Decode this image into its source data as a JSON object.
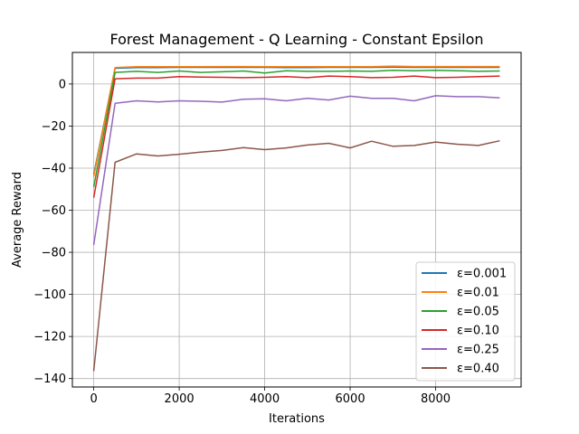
{
  "chart_data": {
    "type": "line",
    "title": "Forest Management - Q Learning - Constant Epsilon",
    "xlabel": "Iterations",
    "ylabel": "Average Reward",
    "xlim": [
      -500,
      10000
    ],
    "ylim": [
      -144,
      15
    ],
    "xticks": [
      0,
      2000,
      4000,
      6000,
      8000
    ],
    "xtick_labels": [
      "0",
      "2000",
      "4000",
      "6000",
      "8000"
    ],
    "yticks": [
      0,
      -20,
      -40,
      -60,
      -80,
      -100,
      -120,
      -140
    ],
    "ytick_labels": [
      "0",
      "−20",
      "−40",
      "−60",
      "−80",
      "−100",
      "−120",
      "−140"
    ],
    "grid": true,
    "legend_position": "lower-right",
    "x": [
      0,
      500,
      1000,
      1500,
      2000,
      2500,
      3000,
      3500,
      4000,
      4500,
      5000,
      5500,
      6000,
      6500,
      7000,
      7500,
      8000,
      8500,
      9000,
      9500
    ],
    "series": [
      {
        "name": "ε=0.001",
        "color": "#1f77b4",
        "values": [
          -43,
          7.5,
          7.8,
          7.8,
          7.9,
          7.9,
          7.9,
          7.9,
          7.9,
          7.8,
          7.8,
          7.9,
          7.9,
          7.9,
          8.0,
          7.9,
          7.9,
          7.9,
          7.9,
          7.9
        ]
      },
      {
        "name": "ε=0.01",
        "color": "#ff7f0e",
        "values": [
          -44,
          7.8,
          8.2,
          8.2,
          8.2,
          8.2,
          8.3,
          8.3,
          8.2,
          8.2,
          8.2,
          8.2,
          8.2,
          8.2,
          8.5,
          8.3,
          8.3,
          8.3,
          8.3,
          8.3
        ]
      },
      {
        "name": "ε=0.05",
        "color": "#2ca02c",
        "values": [
          -49,
          5.5,
          6.0,
          5.5,
          6.2,
          5.5,
          5.8,
          6.2,
          5.2,
          6.3,
          6.0,
          6.0,
          6.2,
          6.0,
          6.5,
          6.3,
          6.5,
          6.3,
          6.0,
          6.2
        ]
      },
      {
        "name": "ε=0.10",
        "color": "#d62728",
        "values": [
          -54,
          2.5,
          2.8,
          2.8,
          3.5,
          3.3,
          3.2,
          3.0,
          3.2,
          3.5,
          3.0,
          3.8,
          3.5,
          3.0,
          3.2,
          3.8,
          3.0,
          3.2,
          3.5,
          3.8
        ]
      },
      {
        "name": "ε=0.25",
        "color": "#9467bd",
        "values": [
          -76.5,
          -9.2,
          -8.0,
          -8.5,
          -8.0,
          -8.2,
          -8.6,
          -7.2,
          -7.0,
          -8.0,
          -6.8,
          -7.6,
          -5.8,
          -6.8,
          -6.8,
          -8.0,
          -5.6,
          -6.0,
          -6.0,
          -6.6
        ]
      },
      {
        "name": "ε=0.40",
        "color": "#8c564b",
        "values": [
          -136.5,
          -37.2,
          -33.2,
          -34.2,
          -33.4,
          -32.4,
          -31.6,
          -30.2,
          -31.2,
          -30.4,
          -29.0,
          -28.2,
          -30.4,
          -27.2,
          -29.6,
          -29.2,
          -27.6,
          -28.6,
          -29.2,
          -27.0
        ]
      }
    ]
  }
}
